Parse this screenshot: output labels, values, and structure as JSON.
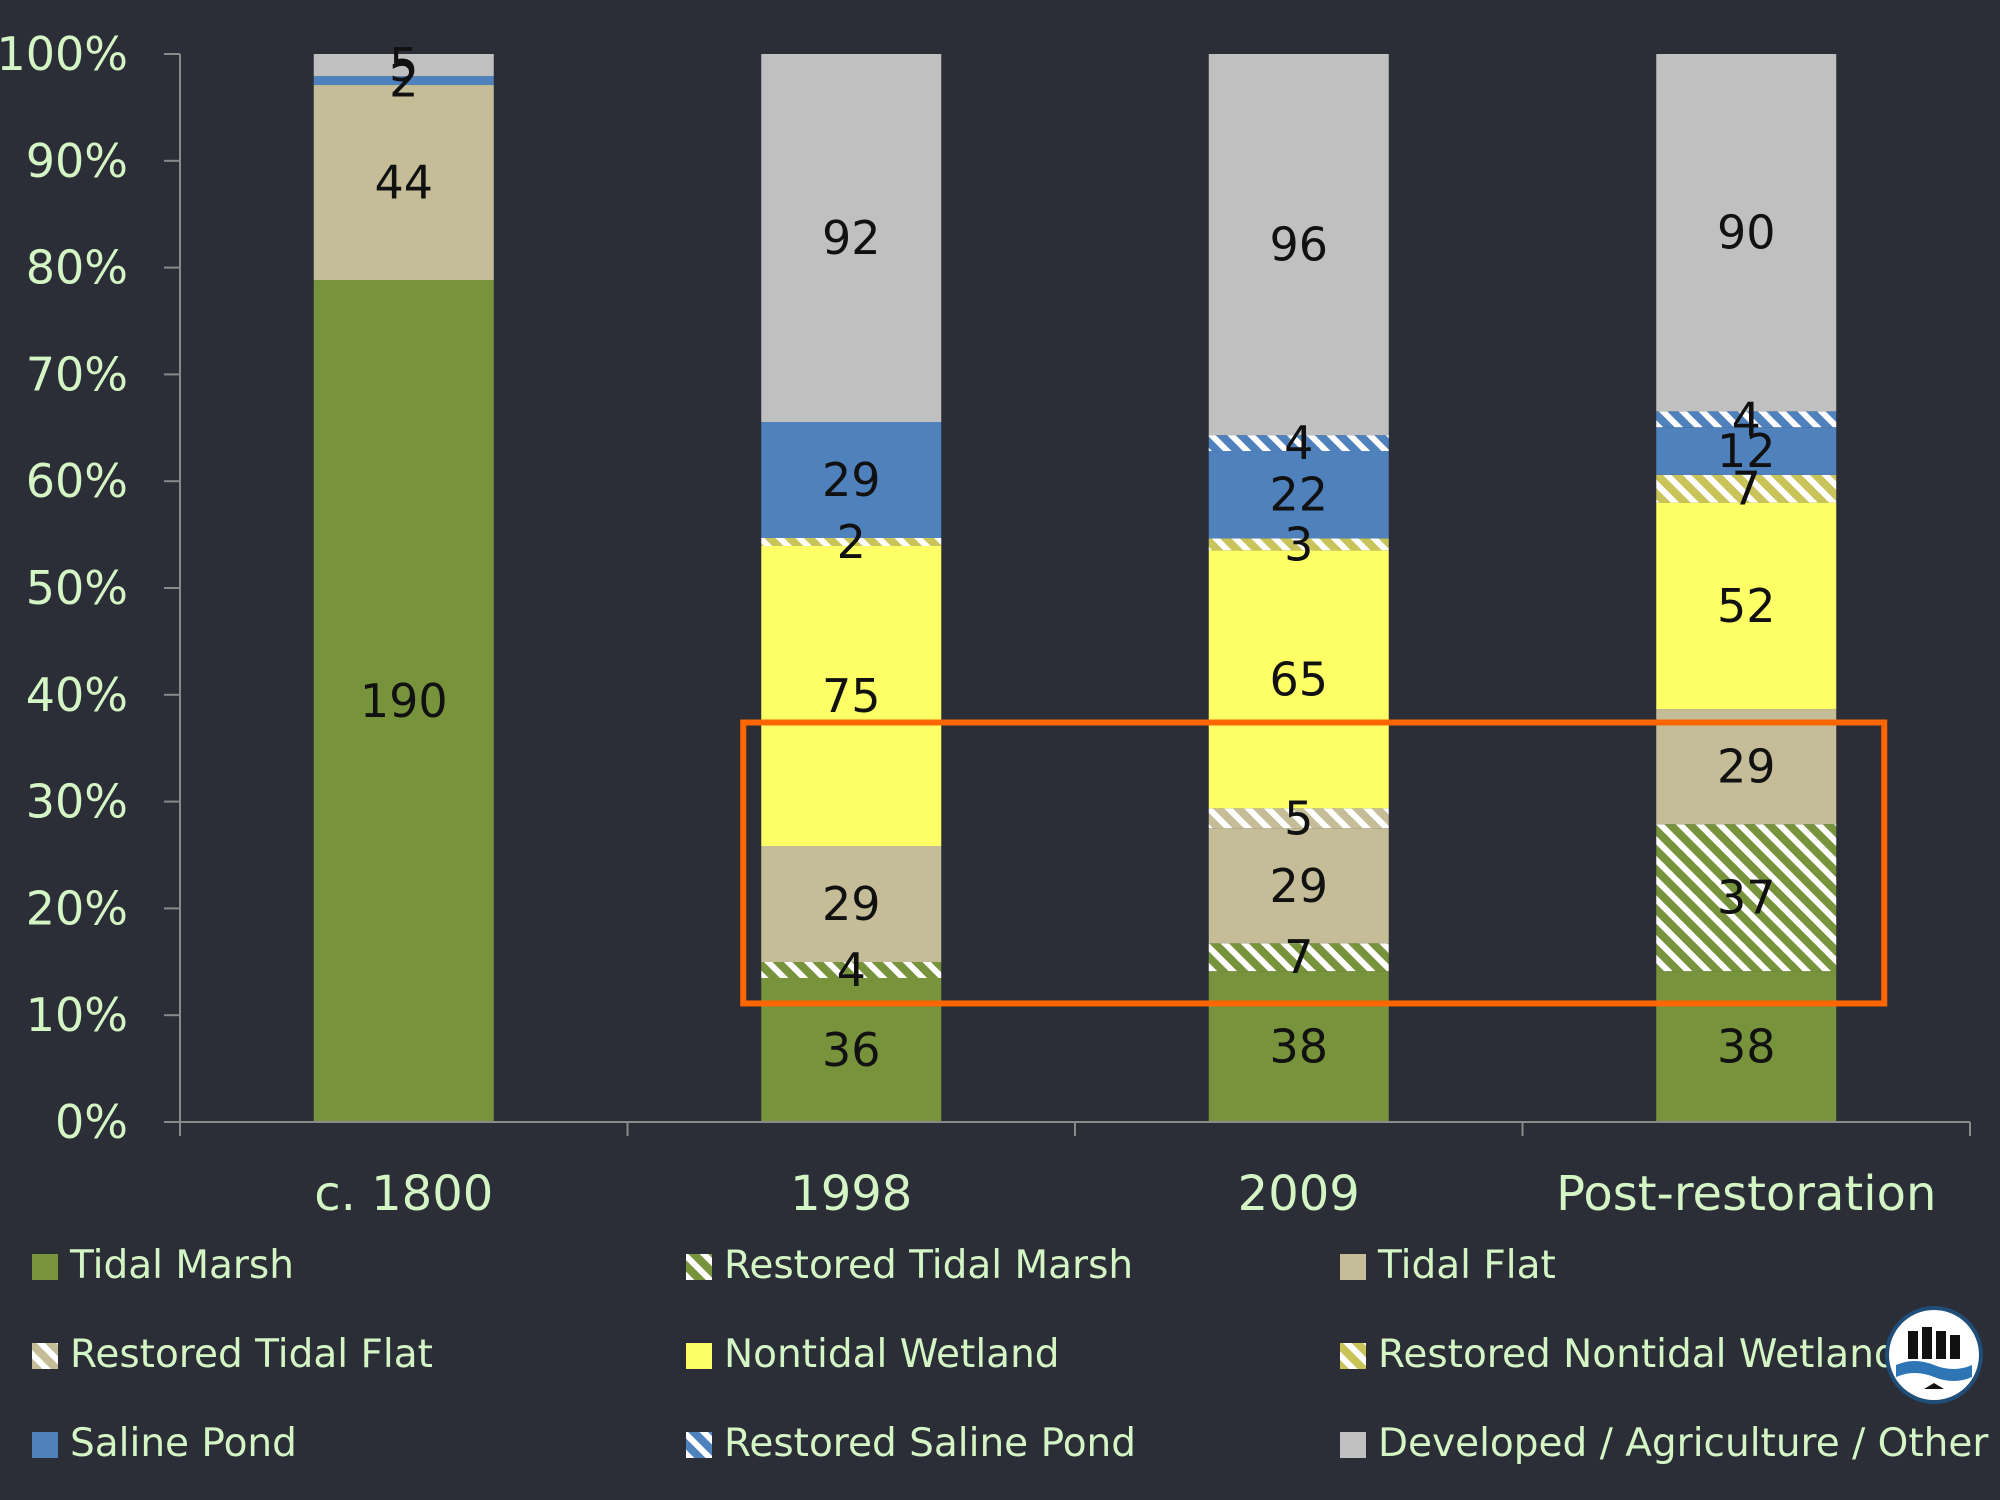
{
  "chart_data": {
    "type": "bar",
    "stacked": "percent",
    "categories": [
      "c. 1800",
      "1998",
      "2009",
      "Post-restoration"
    ],
    "ylim": [
      0,
      100
    ],
    "yticks": [
      "0%",
      "10%",
      "20%",
      "30%",
      "40%",
      "50%",
      "60%",
      "70%",
      "80%",
      "90%",
      "100%"
    ],
    "series": [
      {
        "name": "Tidal Marsh",
        "color": "#77933c",
        "pattern": "solid",
        "values": [
          190,
          36,
          38,
          38
        ]
      },
      {
        "name": "Restored Tidal Marsh",
        "color": "#77933c",
        "pattern": "hatch",
        "values": [
          0,
          4,
          7,
          37
        ]
      },
      {
        "name": "Tidal Flat",
        "color": "#c4bd97",
        "pattern": "solid",
        "values": [
          44,
          29,
          29,
          29
        ]
      },
      {
        "name": "Restored Tidal Flat",
        "color": "#c4bd97",
        "pattern": "hatch",
        "values": [
          0,
          0,
          5,
          0
        ]
      },
      {
        "name": "Nontidal Wetland",
        "color": "#ffff66",
        "pattern": "solid",
        "values": [
          0,
          75,
          65,
          52
        ]
      },
      {
        "name": "Restored Nontidal Wetland",
        "color": "#c9c45a",
        "pattern": "hatch",
        "values": [
          0,
          2,
          3,
          7
        ]
      },
      {
        "name": "Saline Pond",
        "color": "#4f81bd",
        "pattern": "solid",
        "values": [
          2,
          29,
          22,
          12
        ]
      },
      {
        "name": "Restored Saline Pond",
        "color": "#4f81bd",
        "pattern": "hatch",
        "values": [
          0,
          0,
          4,
          4
        ]
      },
      {
        "name": "Developed / Agriculture / Other",
        "color": "#c0c0c0",
        "pattern": "solid",
        "values": [
          5,
          92,
          96,
          90
        ]
      }
    ],
    "legend": "bottom",
    "annotation": "orange rectangle highlighting tidal marsh, restored tidal marsh and tidal flat segments of 1998, 2009 and Post-restoration"
  },
  "colors": {
    "background": "#2b2d37",
    "axis_text": "#d4f5c4",
    "highlight": "#ff6600"
  },
  "logo": {
    "icon": "sfei-logo-icon"
  }
}
